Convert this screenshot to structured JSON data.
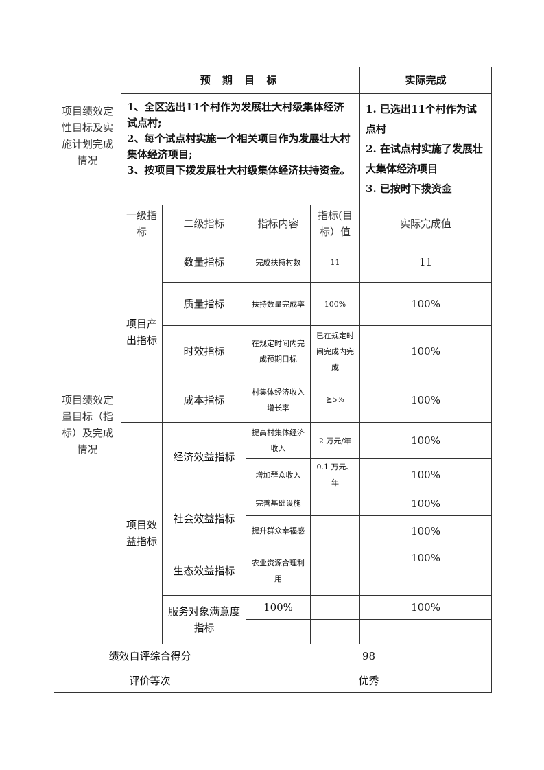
{
  "qualitative": {
    "label": "项目绩效定性目标及实施计划完成情况",
    "expected_header": "预 期 目 标",
    "actual_header": "实际完成",
    "expected_items": [
      "1、全区选出11个村作为发展壮大村级集体经济试点村;",
      "2、每个试点村实施一个相关项目作为发展壮大村集体经济项目;",
      "3、按项目下拨发展壮大村级集体经济扶持资金。"
    ],
    "actual_items": [
      "1. 已选出11个村作为试点村",
      "2. 在试点村实施了发展壮大集体经济项目",
      "3. 已按时下拨资金"
    ]
  },
  "quantitative": {
    "label": "项目绩效定量目标（指标）及完成情况",
    "headers": [
      "一级指标",
      "二级指标",
      "指标内容",
      "指标(目标）值",
      "实际完成值"
    ],
    "output_group": "项目产出指标",
    "output_rows": [
      {
        "level2": "数量指标",
        "content": "完成扶持村数",
        "target": "11",
        "actual": "11"
      },
      {
        "level2": "质量指标",
        "content": "扶持数量完成率",
        "target": "100%",
        "actual": "100%"
      },
      {
        "level2": "时效指标",
        "content": "在规定时间内完成预期目标",
        "target": "已在规定时间完成内完成",
        "actual": "100%"
      },
      {
        "level2": "成本指标",
        "content": "村集体经济收入增长率",
        "target": "≧5%",
        "actual": "100%"
      }
    ],
    "benefit_group": "项目效益指标",
    "economic": {
      "level2": "经济效益指标",
      "rows": [
        {
          "content": "提高村集体经济收入",
          "target": "2 万元/年",
          "actual": "100%"
        },
        {
          "content": "增加群众收入",
          "target": "0.1 万元、年",
          "actual": "100%"
        }
      ]
    },
    "social": {
      "level2": "社会效益指标",
      "rows": [
        {
          "content": "完善基础设施",
          "target": "",
          "actual": "100%"
        },
        {
          "content": "提升群众幸福感",
          "target": "",
          "actual": "100%"
        }
      ]
    },
    "ecological": {
      "level2": "生态效益指标",
      "content": "农业资源合理利用",
      "actual": "100%"
    },
    "satisfaction": {
      "level2": "服务对象满意度指标",
      "content": "100%",
      "actual": "100%"
    }
  },
  "score": {
    "label": "绩效自评综合得分",
    "value": "98"
  },
  "grade": {
    "label": "评价等次",
    "value": "优秀"
  }
}
